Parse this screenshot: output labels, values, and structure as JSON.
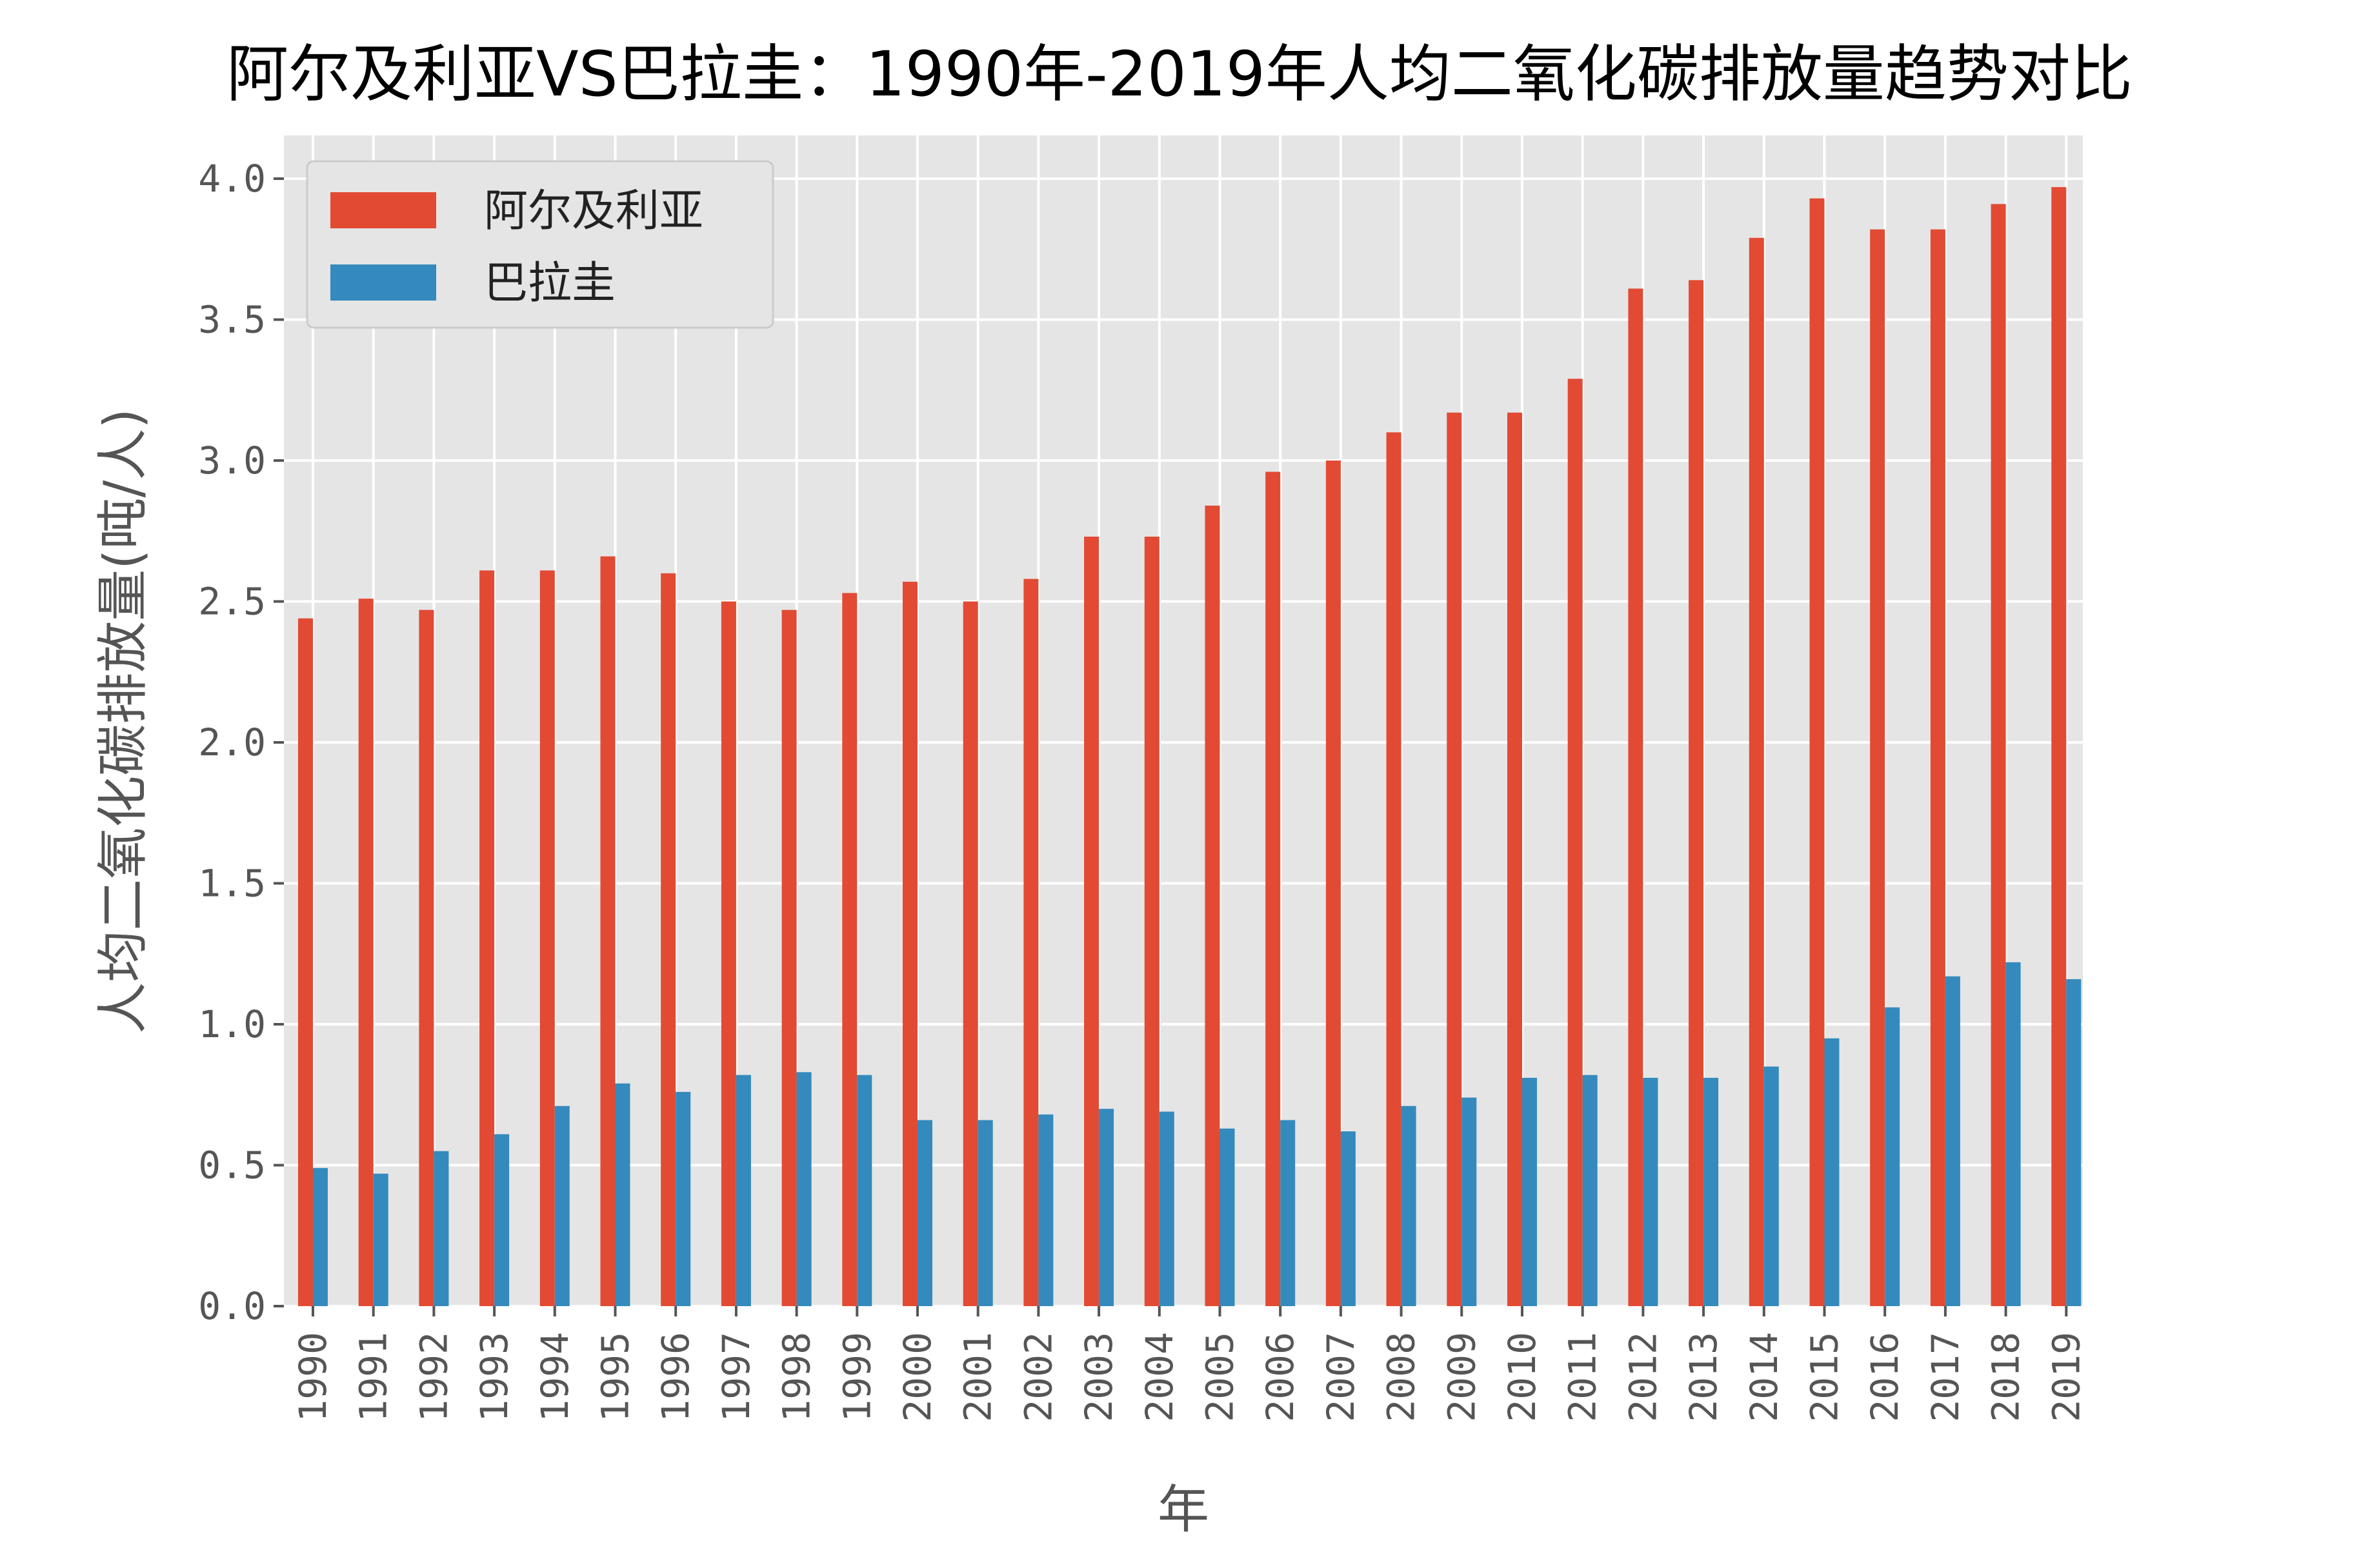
{
  "chart_data": {
    "type": "bar",
    "title": "阿尔及利亚VS巴拉圭：1990年-2019年人均二氧化碳排放量趋势对比",
    "xlabel": "年",
    "ylabel": "人均二氧化碳排放量(吨/人)",
    "ylim": [
      0,
      4.17
    ],
    "yticks": [
      "0.0",
      "0.5",
      "1.0",
      "1.5",
      "2.0",
      "2.5",
      "3.0",
      "3.5",
      "4.0"
    ],
    "grid": true,
    "legend_position": "top-left",
    "categories": [
      "1990",
      "1991",
      "1992",
      "1993",
      "1994",
      "1995",
      "1996",
      "1997",
      "1998",
      "1999",
      "2000",
      "2001",
      "2002",
      "2003",
      "2004",
      "2005",
      "2006",
      "2007",
      "2008",
      "2009",
      "2010",
      "2011",
      "2012",
      "2013",
      "2014",
      "2015",
      "2016",
      "2017",
      "2018",
      "2019"
    ],
    "series": [
      {
        "name": "阿尔及利亚",
        "color": "#E24A33",
        "values": [
          2.44,
          2.51,
          2.47,
          2.61,
          2.61,
          2.66,
          2.6,
          2.5,
          2.47,
          2.53,
          2.57,
          2.5,
          2.58,
          2.73,
          2.73,
          2.84,
          2.96,
          3.0,
          3.1,
          3.17,
          3.17,
          3.29,
          3.61,
          3.64,
          3.79,
          3.93,
          3.82,
          3.82,
          3.91,
          3.97
        ]
      },
      {
        "name": "巴拉圭",
        "color": "#348ABD",
        "values": [
          0.49,
          0.47,
          0.55,
          0.61,
          0.71,
          0.79,
          0.76,
          0.82,
          0.83,
          0.82,
          0.66,
          0.66,
          0.68,
          0.7,
          0.69,
          0.63,
          0.66,
          0.62,
          0.71,
          0.74,
          0.81,
          0.82,
          0.81,
          0.81,
          0.85,
          0.95,
          1.06,
          1.17,
          1.22,
          1.16
        ]
      }
    ]
  }
}
